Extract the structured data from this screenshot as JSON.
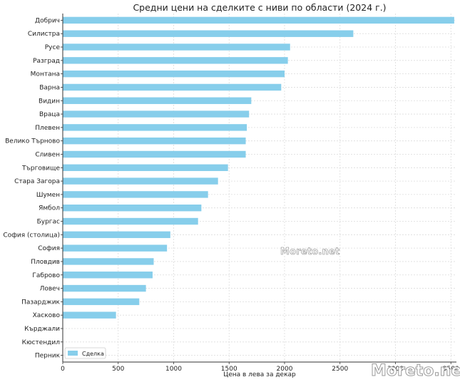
{
  "chart_data": {
    "type": "bar",
    "orientation": "horizontal",
    "title": "Средни цени на сделките с ниви по области (2024 г.)",
    "xlabel": "Цена в лева за декар",
    "ylabel": "",
    "xlim": [
      0,
      3550
    ],
    "xticks": [
      0,
      500,
      1000,
      1500,
      2000,
      2500,
      3000,
      3500
    ],
    "grid": true,
    "legend_position": "bottom-left",
    "bar_color": "#87CEEB",
    "series": [
      {
        "name": "Сделка",
        "values": [
          3530,
          2620,
          2050,
          2030,
          2000,
          1970,
          1700,
          1680,
          1660,
          1650,
          1650,
          1490,
          1400,
          1310,
          1250,
          1220,
          970,
          940,
          820,
          810,
          750,
          690,
          480,
          0,
          0,
          0
        ]
      }
    ],
    "categories": [
      "Добрич",
      "Силистра",
      "Русе",
      "Разград",
      "Монтана",
      "Варна",
      "Видин",
      "Враца",
      "Плевен",
      "Велико Търново",
      "Сливен",
      "Търговище",
      "Стара Загора",
      "Шумен",
      "Ямбол",
      "Бургас",
      "София (столица)",
      "София",
      "Пловдив",
      "Габрово",
      "Ловеч",
      "Пазарджик",
      "Хасково",
      "Кърджали",
      "Кюстендил",
      "Перник"
    ]
  },
  "watermark": {
    "center_text": "Moreto.net",
    "corner_text": "Moreto.net"
  }
}
